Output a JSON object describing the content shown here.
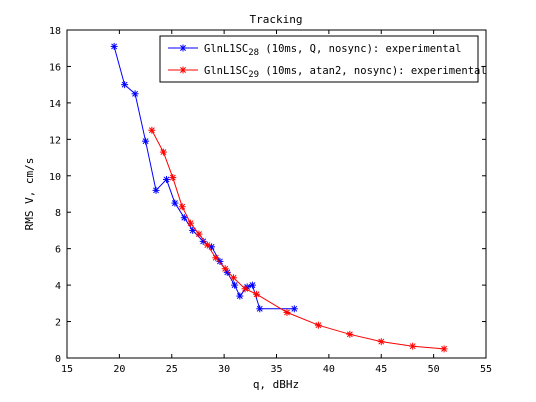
{
  "chart_data": {
    "type": "line",
    "title": "Tracking",
    "xlabel": "q, dBHz",
    "ylabel": "RMS V, cm/s",
    "xlim": [
      15,
      55
    ],
    "ylim": [
      0,
      18
    ],
    "xticks": [
      15,
      20,
      25,
      30,
      35,
      40,
      45,
      50,
      55
    ],
    "yticks": [
      0,
      2,
      4,
      6,
      8,
      10,
      12,
      14,
      16,
      18
    ],
    "grid": false,
    "legend_position": "top-right",
    "series": [
      {
        "name": "GlnL1SC28 (10ms, Q, nosync): experimental",
        "legend_prefix": "GlnL1SC",
        "legend_sub": "28",
        "legend_suffix": " (10ms, Q, nosync): experimental",
        "color": "#0000ff",
        "marker": "*",
        "x": [
          19.5,
          20.5,
          21.5,
          22.5,
          23.5,
          24.5,
          25.3,
          26.2,
          27.0,
          28.0,
          28.8,
          29.6,
          30.3,
          31.0,
          31.5,
          32.2,
          32.7,
          33.4,
          36.7
        ],
        "y": [
          17.1,
          15.0,
          14.5,
          11.9,
          9.2,
          9.8,
          8.5,
          7.7,
          7.0,
          6.4,
          6.1,
          5.3,
          4.7,
          4.0,
          3.4,
          3.9,
          4.0,
          2.7,
          2.7
        ]
      },
      {
        "name": "GlnL1SC29 (10ms, atan2, nosync): experimental",
        "legend_prefix": "GlnL1SC",
        "legend_sub": "29",
        "legend_suffix": " (10ms, atan2, nosync): experimental",
        "color": "#ff0000",
        "marker": "*",
        "x": [
          23.1,
          24.2,
          25.1,
          26.0,
          26.8,
          27.6,
          28.4,
          29.2,
          30.1,
          30.9,
          32.0,
          33.1,
          36.0,
          39.0,
          42.0,
          45.0,
          48.0,
          51.0
        ],
        "y": [
          12.5,
          11.3,
          9.9,
          8.3,
          7.4,
          6.8,
          6.2,
          5.5,
          4.9,
          4.4,
          3.8,
          3.5,
          2.5,
          1.8,
          1.3,
          0.9,
          0.65,
          0.5
        ]
      }
    ]
  }
}
